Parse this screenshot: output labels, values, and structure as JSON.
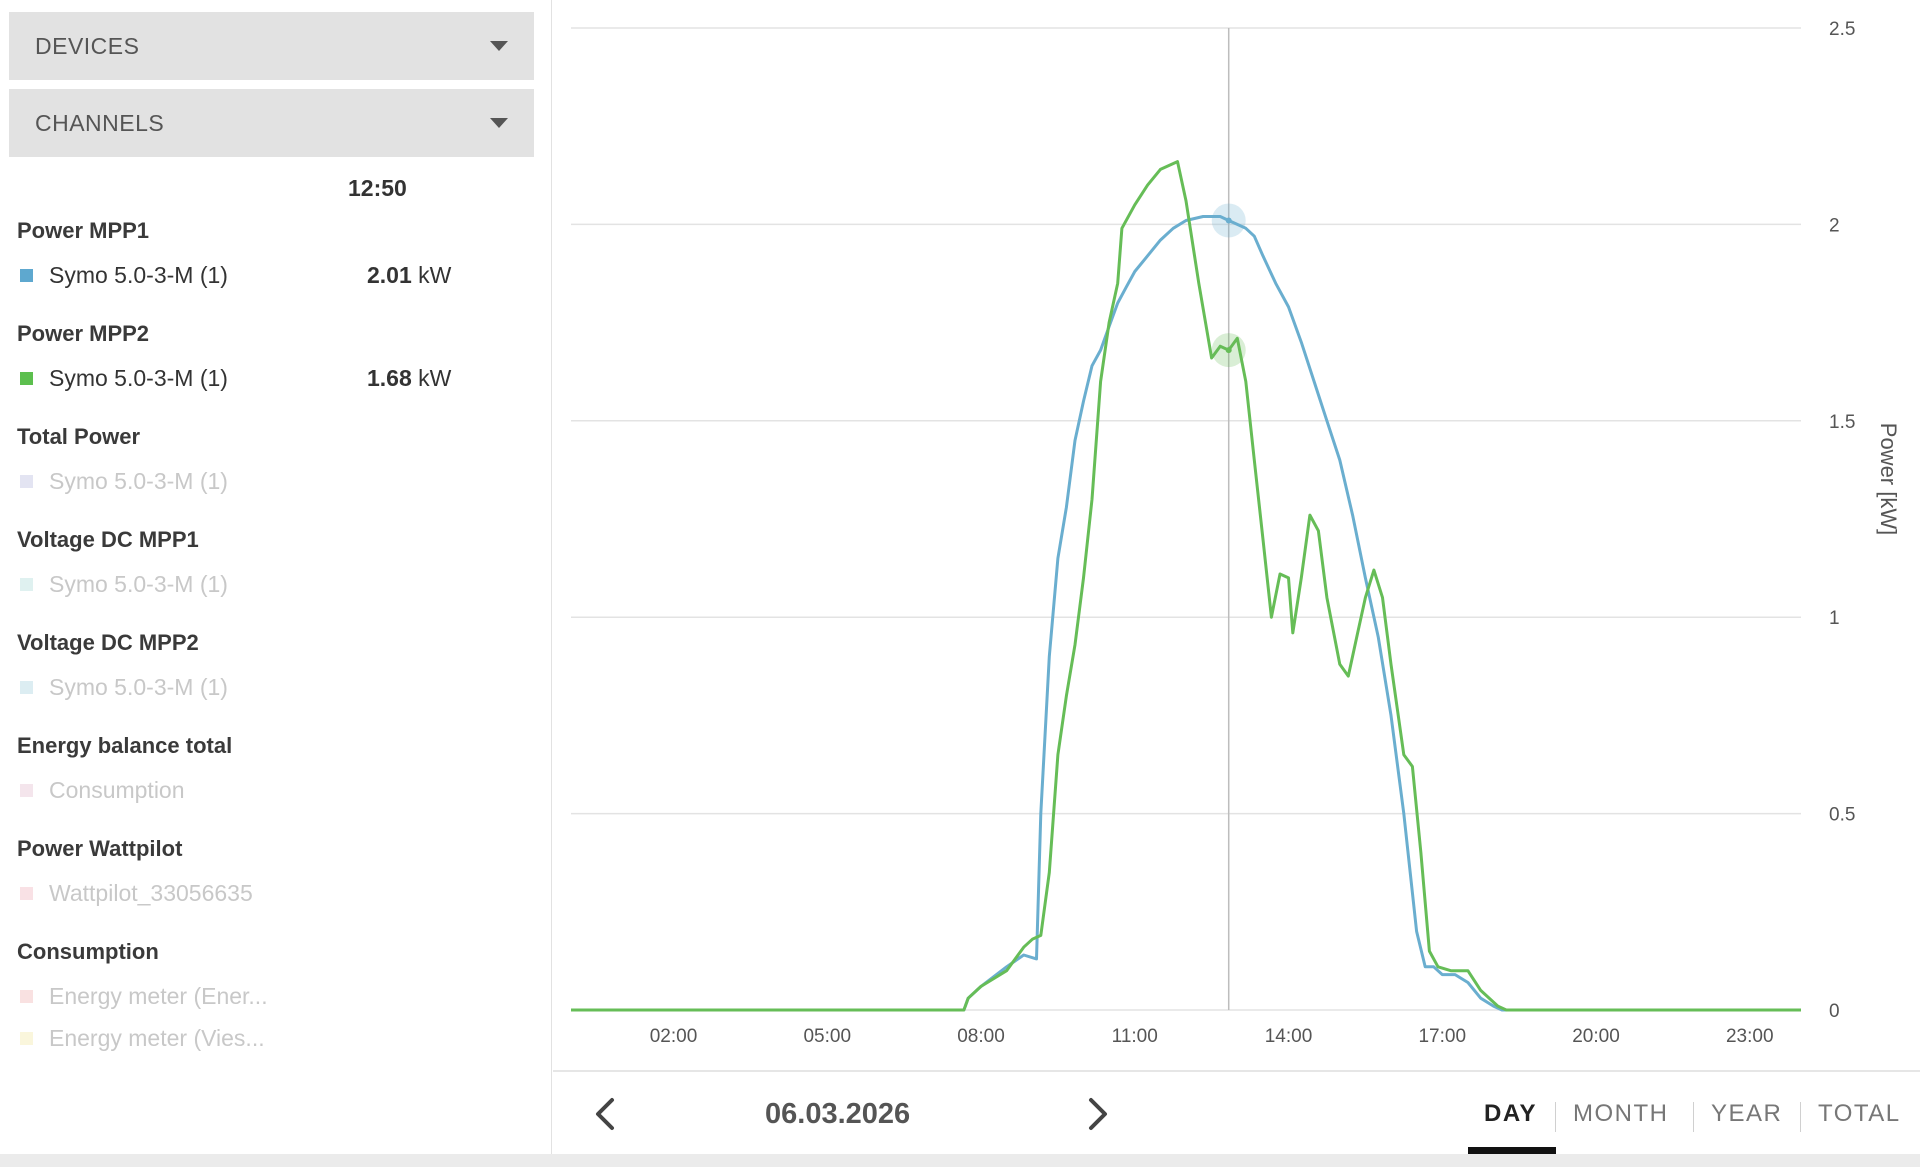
{
  "sidebar": {
    "devices_label": "DEVICES",
    "channels_label": "CHANNELS",
    "time_header": "12:50",
    "groups": [
      {
        "title": "Power MPP1",
        "items": [
          {
            "name": "Symo 5.0-3-M (1)",
            "value": "2.01",
            "unit": "kW",
            "color": "#5ea8cf",
            "active": true
          }
        ]
      },
      {
        "title": "Power MPP2",
        "items": [
          {
            "name": "Symo 5.0-3-M (1)",
            "value": "1.68",
            "unit": "kW",
            "color": "#5cbf4e",
            "active": true
          }
        ]
      },
      {
        "title": "Total Power",
        "items": [
          {
            "name": "Symo 5.0-3-M (1)",
            "color": "#e3e4f2",
            "active": false
          }
        ]
      },
      {
        "title": "Voltage DC MPP1",
        "items": [
          {
            "name": "Symo 5.0-3-M (1)",
            "color": "#dff1f0",
            "active": false
          }
        ]
      },
      {
        "title": "Voltage DC MPP2",
        "items": [
          {
            "name": "Symo 5.0-3-M (1)",
            "color": "#dcedf2",
            "active": false
          }
        ]
      },
      {
        "title": "Energy balance total",
        "items": [
          {
            "name": "Consumption",
            "color": "#f4e5ec",
            "active": false
          }
        ]
      },
      {
        "title": "Power Wattpilot",
        "items": [
          {
            "name": "Wattpilot_33056635",
            "color": "#f9e1e5",
            "active": false
          }
        ]
      },
      {
        "title": "Consumption",
        "items": [
          {
            "name": "Energy meter (Ener...",
            "color": "#f9e1e1",
            "active": false
          },
          {
            "name": "Energy meter (Vies...",
            "color": "#faf6dc",
            "active": false
          }
        ]
      }
    ]
  },
  "chart_data": {
    "type": "line",
    "ylabel": "Power [kW]",
    "ylim": [
      0,
      2.5
    ],
    "yticks": [
      "0",
      "0.5",
      "1",
      "1.5",
      "2",
      "2.5"
    ],
    "xlim": [
      "00:00",
      "24:00"
    ],
    "xticks": [
      "02:00",
      "05:00",
      "08:00",
      "11:00",
      "14:00",
      "17:00",
      "20:00",
      "23:00"
    ],
    "grid": true,
    "cursor": {
      "time": "12:50",
      "values": [
        2.01,
        1.68
      ]
    },
    "series": [
      {
        "color": "#6aaecf",
        "points": [
          [
            "00:00",
            0
          ],
          [
            "07:40",
            0
          ],
          [
            "07:45",
            0.03
          ],
          [
            "08:00",
            0.06
          ],
          [
            "08:30",
            0.11
          ],
          [
            "08:50",
            0.14
          ],
          [
            "09:05",
            0.13
          ],
          [
            "09:10",
            0.5
          ],
          [
            "09:20",
            0.9
          ],
          [
            "09:30",
            1.15
          ],
          [
            "09:40",
            1.28
          ],
          [
            "09:50",
            1.45
          ],
          [
            "10:00",
            1.55
          ],
          [
            "10:10",
            1.64
          ],
          [
            "10:20",
            1.68
          ],
          [
            "10:30",
            1.74
          ],
          [
            "10:40",
            1.8
          ],
          [
            "10:50",
            1.84
          ],
          [
            "11:00",
            1.88
          ],
          [
            "11:15",
            1.92
          ],
          [
            "11:30",
            1.96
          ],
          [
            "11:45",
            1.99
          ],
          [
            "12:00",
            2.01
          ],
          [
            "12:20",
            2.02
          ],
          [
            "12:40",
            2.02
          ],
          [
            "12:50",
            2.01
          ],
          [
            "13:00",
            2.0
          ],
          [
            "13:10",
            1.99
          ],
          [
            "13:20",
            1.97
          ],
          [
            "13:30",
            1.92
          ],
          [
            "13:45",
            1.85
          ],
          [
            "14:00",
            1.79
          ],
          [
            "14:15",
            1.7
          ],
          [
            "14:30",
            1.6
          ],
          [
            "14:45",
            1.5
          ],
          [
            "15:00",
            1.4
          ],
          [
            "15:15",
            1.26
          ],
          [
            "15:30",
            1.1
          ],
          [
            "15:45",
            0.95
          ],
          [
            "16:00",
            0.75
          ],
          [
            "16:15",
            0.5
          ],
          [
            "16:30",
            0.2
          ],
          [
            "16:40",
            0.11
          ],
          [
            "16:50",
            0.11
          ],
          [
            "17:00",
            0.09
          ],
          [
            "17:15",
            0.09
          ],
          [
            "17:30",
            0.07
          ],
          [
            "17:45",
            0.03
          ],
          [
            "18:00",
            0.01
          ],
          [
            "18:10",
            0
          ],
          [
            "24:00",
            0
          ]
        ]
      },
      {
        "color": "#66bd57",
        "points": [
          [
            "00:00",
            0
          ],
          [
            "07:40",
            0
          ],
          [
            "07:45",
            0.03
          ],
          [
            "08:00",
            0.06
          ],
          [
            "08:30",
            0.1
          ],
          [
            "08:50",
            0.16
          ],
          [
            "09:00",
            0.18
          ],
          [
            "09:10",
            0.19
          ],
          [
            "09:20",
            0.35
          ],
          [
            "09:30",
            0.65
          ],
          [
            "09:40",
            0.8
          ],
          [
            "09:50",
            0.93
          ],
          [
            "10:00",
            1.1
          ],
          [
            "10:10",
            1.3
          ],
          [
            "10:20",
            1.6
          ],
          [
            "10:30",
            1.75
          ],
          [
            "10:40",
            1.85
          ],
          [
            "10:45",
            1.99
          ],
          [
            "11:00",
            2.05
          ],
          [
            "11:15",
            2.1
          ],
          [
            "11:30",
            2.14
          ],
          [
            "11:50",
            2.16
          ],
          [
            "12:00",
            2.06
          ],
          [
            "12:15",
            1.85
          ],
          [
            "12:30",
            1.66
          ],
          [
            "12:40",
            1.69
          ],
          [
            "12:50",
            1.68
          ],
          [
            "13:00",
            1.71
          ],
          [
            "13:10",
            1.6
          ],
          [
            "13:20",
            1.4
          ],
          [
            "13:30",
            1.2
          ],
          [
            "13:40",
            1.0
          ],
          [
            "13:50",
            1.11
          ],
          [
            "14:00",
            1.1
          ],
          [
            "14:05",
            0.96
          ],
          [
            "14:15",
            1.1
          ],
          [
            "14:25",
            1.26
          ],
          [
            "14:35",
            1.22
          ],
          [
            "14:45",
            1.05
          ],
          [
            "15:00",
            0.88
          ],
          [
            "15:10",
            0.85
          ],
          [
            "15:20",
            0.95
          ],
          [
            "15:30",
            1.05
          ],
          [
            "15:40",
            1.12
          ],
          [
            "15:50",
            1.05
          ],
          [
            "16:00",
            0.88
          ],
          [
            "16:15",
            0.65
          ],
          [
            "16:25",
            0.62
          ],
          [
            "16:35",
            0.4
          ],
          [
            "16:45",
            0.15
          ],
          [
            "16:55",
            0.11
          ],
          [
            "17:10",
            0.1
          ],
          [
            "17:30",
            0.1
          ],
          [
            "17:45",
            0.05
          ],
          [
            "18:05",
            0.01
          ],
          [
            "18:15",
            0
          ],
          [
            "24:00",
            0
          ]
        ]
      }
    ]
  },
  "bottom": {
    "date": "06.03.2026",
    "prev_icon": "chevron-left-icon",
    "next_icon": "chevron-right-icon",
    "tabs": [
      "DAY",
      "MONTH",
      "YEAR",
      "TOTAL"
    ],
    "active_tab": "DAY"
  }
}
